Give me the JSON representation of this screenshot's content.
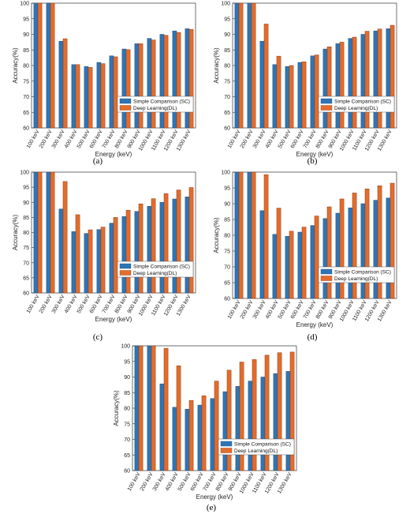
{
  "colors": {
    "sc": "#2E75B6",
    "sc_edge": "#1F4E79",
    "dl": "#E46C2C",
    "dl_edge": "#8C3A12"
  },
  "chart_data": [
    {
      "panel": "(a)",
      "type": "bar",
      "categories": [
        "100 keV",
        "200 keV",
        "300 keV",
        "400 keV",
        "500 keV",
        "600 keV",
        "700 keV",
        "800 keV",
        "900 keV",
        "1000 keV",
        "1100 keV",
        "1200 keV",
        "1300 keV"
      ],
      "series": [
        {
          "name": "Simple Comparison (SC)",
          "values": [
            100,
            100,
            87.8,
            80.3,
            79.7,
            81.0,
            83.1,
            85.3,
            87.0,
            88.7,
            90.0,
            91.1,
            91.8
          ]
        },
        {
          "name": "Deep Learning(DL)",
          "values": [
            100,
            100,
            88.6,
            80.3,
            79.4,
            80.6,
            82.8,
            85.1,
            87.0,
            88.2,
            89.7,
            90.6,
            91.6
          ]
        }
      ],
      "xlabel": "Energy (keV)",
      "ylabel": "Accuracy(%)",
      "ylim": [
        60,
        100
      ],
      "yticks": [
        60,
        65,
        70,
        75,
        80,
        85,
        90,
        95,
        100
      ],
      "legend": "bottom-right"
    },
    {
      "panel": "(b)",
      "type": "bar",
      "categories": [
        "100 keV",
        "200 keV",
        "300 keV",
        "400 keV",
        "500 keV",
        "600 keV",
        "700 keV",
        "800 keV",
        "900 keV",
        "1000 keV",
        "1100 keV",
        "1200 keV",
        "1300 keV"
      ],
      "series": [
        {
          "name": "Simple Comparison (SC)",
          "values": [
            100,
            100,
            87.8,
            80.3,
            79.7,
            81.0,
            83.1,
            85.3,
            87.0,
            88.7,
            90.0,
            91.1,
            91.8
          ]
        },
        {
          "name": "Deep Learning(DL)",
          "values": [
            100,
            100,
            93.3,
            83.0,
            80.0,
            81.2,
            83.4,
            86.0,
            87.5,
            89.1,
            91.0,
            91.7,
            92.9
          ]
        }
      ],
      "xlabel": "Energy (keV)",
      "ylabel": "Accuracy(%)",
      "ylim": [
        60,
        100
      ],
      "yticks": [
        60,
        65,
        70,
        75,
        80,
        85,
        90,
        95,
        100
      ],
      "legend": "bottom-right"
    },
    {
      "panel": "(c)",
      "type": "bar",
      "categories": [
        "100 keV",
        "200 keV",
        "300 keV",
        "400 keV",
        "500 keV",
        "600 keV",
        "700 keV",
        "800 keV",
        "900 keV",
        "1000 keV",
        "1100 keV",
        "1200 keV",
        "1300 keV"
      ],
      "series": [
        {
          "name": "Simple Comparison (SC)",
          "values": [
            100,
            100,
            87.8,
            80.3,
            79.7,
            81.0,
            83.1,
            85.3,
            87.0,
            88.7,
            90.0,
            91.1,
            91.8
          ]
        },
        {
          "name": "Deep Learning(DL)",
          "values": [
            100,
            100,
            96.9,
            85.9,
            80.9,
            81.8,
            85.0,
            87.4,
            89.5,
            91.2,
            92.9,
            94.1,
            94.9
          ]
        }
      ],
      "xlabel": "Energy (keV)",
      "ylabel": "Accuracy(%)",
      "ylim": [
        60,
        100
      ],
      "yticks": [
        60,
        65,
        70,
        75,
        80,
        85,
        90,
        95,
        100
      ],
      "legend": "bottom-right"
    },
    {
      "panel": "(d)",
      "type": "bar",
      "categories": [
        "100 keV",
        "200 keV",
        "300 keV",
        "400 keV",
        "500 keV",
        "600 keV",
        "700 keV",
        "800 keV",
        "900 keV",
        "1000 keV",
        "1100 keV",
        "1200 keV",
        "1300 keV"
      ],
      "series": [
        {
          "name": "Simple Comparison (SC)",
          "values": [
            100,
            100,
            87.8,
            80.3,
            79.7,
            81.0,
            83.1,
            85.3,
            87.0,
            88.7,
            90.0,
            91.1,
            91.8
          ]
        },
        {
          "name": "Deep Learning(DL)",
          "values": [
            100,
            100,
            99.2,
            88.6,
            81.3,
            82.6,
            86.1,
            89.0,
            91.5,
            93.4,
            94.7,
            95.7,
            96.5
          ]
        }
      ],
      "xlabel": "Energy (keV)",
      "ylabel": "Accuracy(%)",
      "ylim": [
        60,
        100
      ],
      "yticks": [
        60,
        65,
        70,
        75,
        80,
        85,
        90,
        95,
        100
      ],
      "legend": "bottom-right"
    },
    {
      "panel": "(e)",
      "type": "bar",
      "categories": [
        "100 keV",
        "200 keV",
        "300 keV",
        "400 keV",
        "500 keV",
        "600 keV",
        "700 keV",
        "800 keV",
        "900 keV",
        "1000 keV",
        "1100 keV",
        "1200 keV",
        "1300 keV"
      ],
      "series": [
        {
          "name": "Simple Comparison (SC)",
          "values": [
            100,
            100,
            87.8,
            80.3,
            79.7,
            81.0,
            83.1,
            85.3,
            87.0,
            88.7,
            90.0,
            91.1,
            91.8
          ]
        },
        {
          "name": "Deep Learning(DL)",
          "values": [
            100,
            100,
            99.2,
            93.6,
            82.5,
            84.0,
            88.7,
            92.2,
            94.8,
            95.6,
            97.0,
            97.8,
            98.0
          ]
        }
      ],
      "xlabel": "Energy (keV)",
      "ylabel": "Accuracy(%)",
      "ylim": [
        60,
        100
      ],
      "yticks": [
        60,
        65,
        70,
        75,
        80,
        85,
        90,
        95,
        100
      ],
      "legend": "bottom-right"
    }
  ]
}
